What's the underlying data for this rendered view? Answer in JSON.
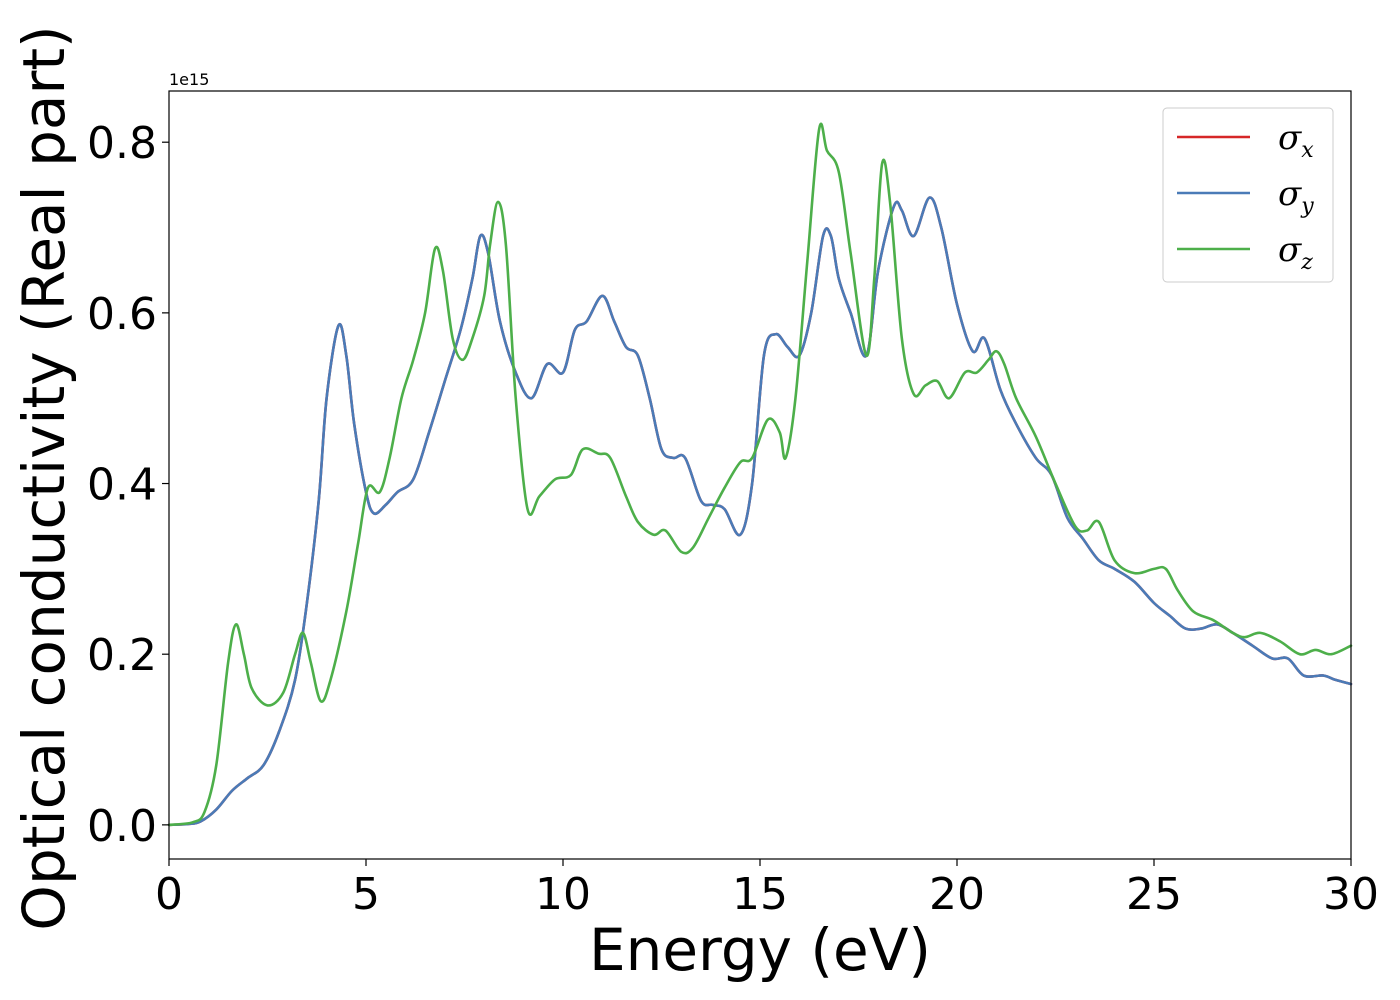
{
  "chart_data": {
    "type": "line",
    "xlabel": "Energy (eV)",
    "ylabel": "Optical conductivity (Real part)",
    "offset_text": "1e15",
    "xlim": [
      0,
      30
    ],
    "ylim": [
      -0.04,
      0.86
    ],
    "x_ticks": [
      0,
      5,
      10,
      15,
      20,
      25,
      30
    ],
    "x_tick_labels": [
      "0",
      "5",
      "10",
      "15",
      "20",
      "25",
      "30"
    ],
    "y_ticks": [
      0.0,
      0.2,
      0.4,
      0.6,
      0.8
    ],
    "y_tick_labels": [
      "0.0",
      "0.2",
      "0.4",
      "0.6",
      "0.8"
    ],
    "grid": false,
    "legend_position": "top-right",
    "series": [
      {
        "name": "σx",
        "symbol": "σ",
        "subscript": "x",
        "color": "#d62728",
        "points": [
          [
            0,
            0
          ],
          [
            0.5,
            0.001
          ],
          [
            0.8,
            0.004
          ],
          [
            1.2,
            0.018
          ],
          [
            1.6,
            0.04
          ],
          [
            2.0,
            0.055
          ],
          [
            2.4,
            0.07
          ],
          [
            2.8,
            0.11
          ],
          [
            3.2,
            0.17
          ],
          [
            3.5,
            0.26
          ],
          [
            3.8,
            0.38
          ],
          [
            4.0,
            0.5
          ],
          [
            4.3,
            0.585
          ],
          [
            4.5,
            0.55
          ],
          [
            4.7,
            0.47
          ],
          [
            5.0,
            0.39
          ],
          [
            5.2,
            0.365
          ],
          [
            5.5,
            0.375
          ],
          [
            5.8,
            0.39
          ],
          [
            6.2,
            0.405
          ],
          [
            6.6,
            0.46
          ],
          [
            7.0,
            0.52
          ],
          [
            7.4,
            0.58
          ],
          [
            7.7,
            0.64
          ],
          [
            7.9,
            0.69
          ],
          [
            8.1,
            0.67
          ],
          [
            8.4,
            0.59
          ],
          [
            8.8,
            0.53
          ],
          [
            9.2,
            0.5
          ],
          [
            9.6,
            0.54
          ],
          [
            10.0,
            0.53
          ],
          [
            10.3,
            0.58
          ],
          [
            10.6,
            0.59
          ],
          [
            11.0,
            0.62
          ],
          [
            11.3,
            0.59
          ],
          [
            11.6,
            0.56
          ],
          [
            11.9,
            0.55
          ],
          [
            12.2,
            0.5
          ],
          [
            12.5,
            0.44
          ],
          [
            12.8,
            0.43
          ],
          [
            13.1,
            0.43
          ],
          [
            13.5,
            0.38
          ],
          [
            13.8,
            0.375
          ],
          [
            14.1,
            0.37
          ],
          [
            14.5,
            0.34
          ],
          [
            14.8,
            0.4
          ],
          [
            15.1,
            0.55
          ],
          [
            15.4,
            0.575
          ],
          [
            15.7,
            0.56
          ],
          [
            16.0,
            0.55
          ],
          [
            16.3,
            0.6
          ],
          [
            16.6,
            0.69
          ],
          [
            16.8,
            0.69
          ],
          [
            17.0,
            0.64
          ],
          [
            17.3,
            0.6
          ],
          [
            17.7,
            0.55
          ],
          [
            18.0,
            0.65
          ],
          [
            18.4,
            0.725
          ],
          [
            18.6,
            0.72
          ],
          [
            18.9,
            0.69
          ],
          [
            19.3,
            0.735
          ],
          [
            19.6,
            0.7
          ],
          [
            20.0,
            0.61
          ],
          [
            20.4,
            0.555
          ],
          [
            20.7,
            0.57
          ],
          [
            21.1,
            0.51
          ],
          [
            21.5,
            0.47
          ],
          [
            22.0,
            0.43
          ],
          [
            22.4,
            0.41
          ],
          [
            22.8,
            0.36
          ],
          [
            23.2,
            0.335
          ],
          [
            23.6,
            0.31
          ],
          [
            24.0,
            0.3
          ],
          [
            24.5,
            0.285
          ],
          [
            25.0,
            0.26
          ],
          [
            25.4,
            0.245
          ],
          [
            25.8,
            0.23
          ],
          [
            26.2,
            0.23
          ],
          [
            26.6,
            0.235
          ],
          [
            27.0,
            0.225
          ],
          [
            27.5,
            0.21
          ],
          [
            28.0,
            0.195
          ],
          [
            28.4,
            0.195
          ],
          [
            28.8,
            0.175
          ],
          [
            29.3,
            0.175
          ],
          [
            29.6,
            0.17
          ],
          [
            30.0,
            0.165
          ]
        ]
      },
      {
        "name": "σy",
        "symbol": "σ",
        "subscript": "y",
        "color": "#4a7bb7",
        "points": [
          [
            0,
            0
          ],
          [
            0.5,
            0.001
          ],
          [
            0.8,
            0.004
          ],
          [
            1.2,
            0.018
          ],
          [
            1.6,
            0.04
          ],
          [
            2.0,
            0.055
          ],
          [
            2.4,
            0.07
          ],
          [
            2.8,
            0.11
          ],
          [
            3.2,
            0.17
          ],
          [
            3.5,
            0.26
          ],
          [
            3.8,
            0.38
          ],
          [
            4.0,
            0.5
          ],
          [
            4.3,
            0.585
          ],
          [
            4.5,
            0.55
          ],
          [
            4.7,
            0.47
          ],
          [
            5.0,
            0.39
          ],
          [
            5.2,
            0.365
          ],
          [
            5.5,
            0.375
          ],
          [
            5.8,
            0.39
          ],
          [
            6.2,
            0.405
          ],
          [
            6.6,
            0.46
          ],
          [
            7.0,
            0.52
          ],
          [
            7.4,
            0.58
          ],
          [
            7.7,
            0.64
          ],
          [
            7.9,
            0.69
          ],
          [
            8.1,
            0.67
          ],
          [
            8.4,
            0.59
          ],
          [
            8.8,
            0.53
          ],
          [
            9.2,
            0.5
          ],
          [
            9.6,
            0.54
          ],
          [
            10.0,
            0.53
          ],
          [
            10.3,
            0.58
          ],
          [
            10.6,
            0.59
          ],
          [
            11.0,
            0.62
          ],
          [
            11.3,
            0.59
          ],
          [
            11.6,
            0.56
          ],
          [
            11.9,
            0.55
          ],
          [
            12.2,
            0.5
          ],
          [
            12.5,
            0.44
          ],
          [
            12.8,
            0.43
          ],
          [
            13.1,
            0.43
          ],
          [
            13.5,
            0.38
          ],
          [
            13.8,
            0.375
          ],
          [
            14.1,
            0.37
          ],
          [
            14.5,
            0.34
          ],
          [
            14.8,
            0.4
          ],
          [
            15.1,
            0.55
          ],
          [
            15.4,
            0.575
          ],
          [
            15.7,
            0.56
          ],
          [
            16.0,
            0.55
          ],
          [
            16.3,
            0.6
          ],
          [
            16.6,
            0.69
          ],
          [
            16.8,
            0.69
          ],
          [
            17.0,
            0.64
          ],
          [
            17.3,
            0.6
          ],
          [
            17.7,
            0.55
          ],
          [
            18.0,
            0.65
          ],
          [
            18.4,
            0.725
          ],
          [
            18.6,
            0.72
          ],
          [
            18.9,
            0.69
          ],
          [
            19.3,
            0.735
          ],
          [
            19.6,
            0.7
          ],
          [
            20.0,
            0.61
          ],
          [
            20.4,
            0.555
          ],
          [
            20.7,
            0.57
          ],
          [
            21.1,
            0.51
          ],
          [
            21.5,
            0.47
          ],
          [
            22.0,
            0.43
          ],
          [
            22.4,
            0.41
          ],
          [
            22.8,
            0.36
          ],
          [
            23.2,
            0.335
          ],
          [
            23.6,
            0.31
          ],
          [
            24.0,
            0.3
          ],
          [
            24.5,
            0.285
          ],
          [
            25.0,
            0.26
          ],
          [
            25.4,
            0.245
          ],
          [
            25.8,
            0.23
          ],
          [
            26.2,
            0.23
          ],
          [
            26.6,
            0.235
          ],
          [
            27.0,
            0.225
          ],
          [
            27.5,
            0.21
          ],
          [
            28.0,
            0.195
          ],
          [
            28.4,
            0.195
          ],
          [
            28.8,
            0.175
          ],
          [
            29.3,
            0.175
          ],
          [
            29.6,
            0.17
          ],
          [
            30.0,
            0.165
          ]
        ]
      },
      {
        "name": "σz",
        "symbol": "σ",
        "subscript": "z",
        "color": "#4daf4a",
        "points": [
          [
            0,
            0
          ],
          [
            0.6,
            0.003
          ],
          [
            0.9,
            0.015
          ],
          [
            1.2,
            0.07
          ],
          [
            1.5,
            0.19
          ],
          [
            1.7,
            0.235
          ],
          [
            1.9,
            0.2
          ],
          [
            2.1,
            0.16
          ],
          [
            2.5,
            0.14
          ],
          [
            2.9,
            0.155
          ],
          [
            3.2,
            0.2
          ],
          [
            3.4,
            0.225
          ],
          [
            3.6,
            0.19
          ],
          [
            3.85,
            0.145
          ],
          [
            4.1,
            0.17
          ],
          [
            4.5,
            0.25
          ],
          [
            4.8,
            0.33
          ],
          [
            5.05,
            0.395
          ],
          [
            5.35,
            0.39
          ],
          [
            5.6,
            0.43
          ],
          [
            5.9,
            0.5
          ],
          [
            6.2,
            0.545
          ],
          [
            6.5,
            0.6
          ],
          [
            6.75,
            0.675
          ],
          [
            6.95,
            0.65
          ],
          [
            7.2,
            0.57
          ],
          [
            7.45,
            0.545
          ],
          [
            7.7,
            0.57
          ],
          [
            8.0,
            0.62
          ],
          [
            8.15,
            0.68
          ],
          [
            8.35,
            0.73
          ],
          [
            8.55,
            0.68
          ],
          [
            8.8,
            0.5
          ],
          [
            9.1,
            0.37
          ],
          [
            9.4,
            0.385
          ],
          [
            9.8,
            0.405
          ],
          [
            10.2,
            0.41
          ],
          [
            10.5,
            0.44
          ],
          [
            10.9,
            0.435
          ],
          [
            11.2,
            0.43
          ],
          [
            11.6,
            0.385
          ],
          [
            11.9,
            0.355
          ],
          [
            12.3,
            0.34
          ],
          [
            12.6,
            0.345
          ],
          [
            13.0,
            0.32
          ],
          [
            13.3,
            0.325
          ],
          [
            13.7,
            0.36
          ],
          [
            14.1,
            0.395
          ],
          [
            14.5,
            0.425
          ],
          [
            14.8,
            0.43
          ],
          [
            15.2,
            0.475
          ],
          [
            15.5,
            0.46
          ],
          [
            15.65,
            0.43
          ],
          [
            15.9,
            0.5
          ],
          [
            16.2,
            0.66
          ],
          [
            16.5,
            0.815
          ],
          [
            16.7,
            0.79
          ],
          [
            17.0,
            0.765
          ],
          [
            17.3,
            0.67
          ],
          [
            17.7,
            0.55
          ],
          [
            17.9,
            0.64
          ],
          [
            18.1,
            0.775
          ],
          [
            18.3,
            0.73
          ],
          [
            18.6,
            0.57
          ],
          [
            18.9,
            0.505
          ],
          [
            19.2,
            0.515
          ],
          [
            19.5,
            0.52
          ],
          [
            19.8,
            0.5
          ],
          [
            20.2,
            0.53
          ],
          [
            20.5,
            0.53
          ],
          [
            20.8,
            0.545
          ],
          [
            21.0,
            0.555
          ],
          [
            21.2,
            0.54
          ],
          [
            21.5,
            0.5
          ],
          [
            22.0,
            0.455
          ],
          [
            22.5,
            0.4
          ],
          [
            23.0,
            0.35
          ],
          [
            23.3,
            0.345
          ],
          [
            23.6,
            0.355
          ],
          [
            24.0,
            0.31
          ],
          [
            24.5,
            0.295
          ],
          [
            25.0,
            0.3
          ],
          [
            25.3,
            0.3
          ],
          [
            25.6,
            0.275
          ],
          [
            26.0,
            0.25
          ],
          [
            26.5,
            0.24
          ],
          [
            27.0,
            0.225
          ],
          [
            27.3,
            0.22
          ],
          [
            27.7,
            0.225
          ],
          [
            28.2,
            0.215
          ],
          [
            28.7,
            0.2
          ],
          [
            29.1,
            0.205
          ],
          [
            29.5,
            0.2
          ],
          [
            30.0,
            0.21
          ]
        ]
      }
    ]
  }
}
